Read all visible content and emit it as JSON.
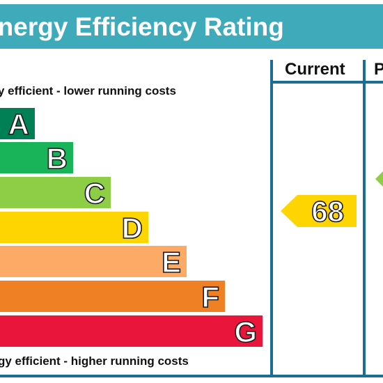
{
  "header": {
    "title": "Energy Efficiency Rating"
  },
  "columns": {
    "current": "Current",
    "potential": "Potential"
  },
  "captions": {
    "top": "Very energy efficient - lower running costs",
    "bottom": "Not energy efficient - higher running costs"
  },
  "bands": [
    {
      "letter": "A",
      "color": "#008054"
    },
    {
      "letter": "B",
      "color": "#19b459"
    },
    {
      "letter": "C",
      "color": "#8dce46"
    },
    {
      "letter": "D",
      "color": "#ffd500"
    },
    {
      "letter": "E",
      "color": "#fcaa65"
    },
    {
      "letter": "F",
      "color": "#ef8023"
    },
    {
      "letter": "G",
      "color": "#e9153b"
    }
  ],
  "current_rating": {
    "value": "68",
    "band": "D",
    "color": "#ffd500"
  },
  "potential_rating": {
    "band": "C",
    "color": "#8dce46"
  },
  "colors": {
    "header_background": "#3faab9",
    "frame": "#1b6d95"
  }
}
